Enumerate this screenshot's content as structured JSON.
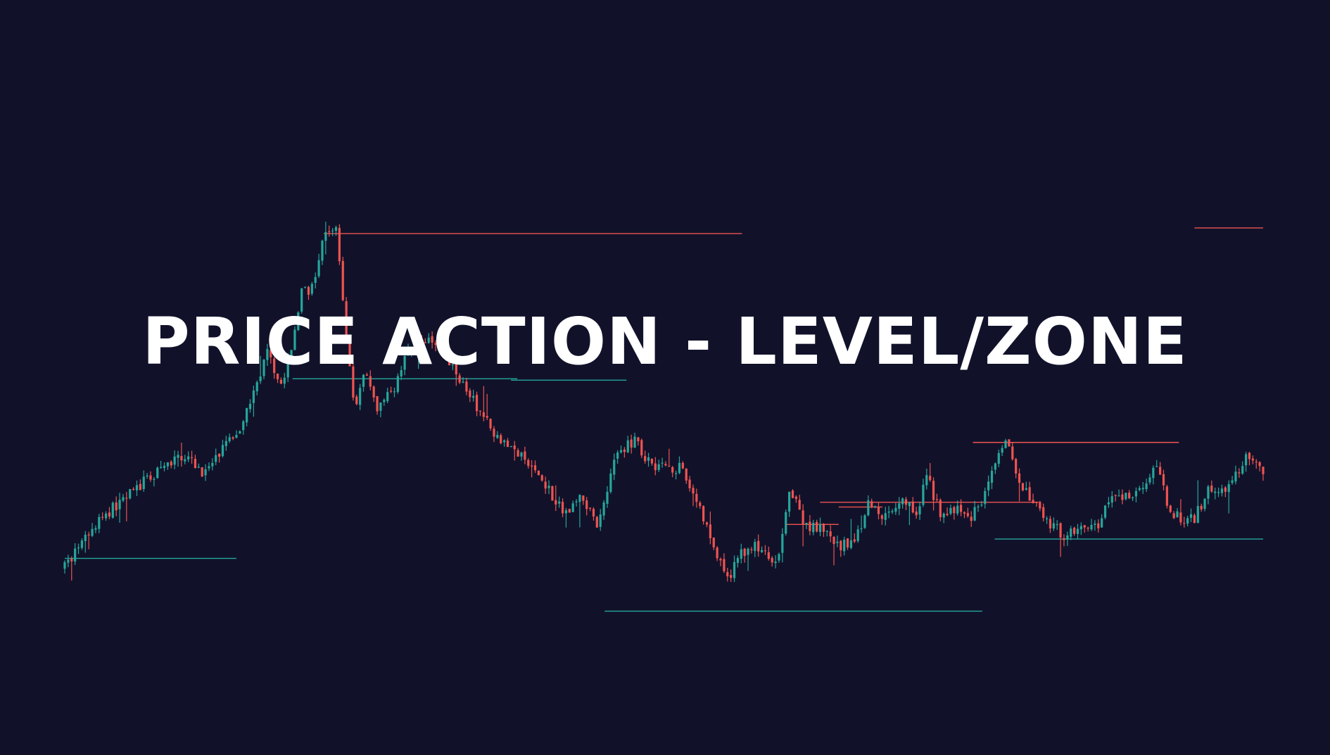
{
  "title": "PRICE ACTION - LEVEL/ZONE",
  "colors": {
    "background": "#11122a",
    "bullish": "#26a69a",
    "bearish": "#ef5350",
    "title": "#ffffff"
  },
  "chart_data": {
    "type": "candlestick",
    "title": "PRICE ACTION - LEVEL/ZONE",
    "xlabel": "",
    "ylabel": "",
    "grid": false,
    "axes_visible": false,
    "ylim": [
      0,
      1000
    ],
    "candle_count": 350,
    "price_path": [
      [
        0,
        110
      ],
      [
        12,
        215
      ],
      [
        25,
        288
      ],
      [
        38,
        350
      ],
      [
        45,
        310
      ],
      [
        55,
        395
      ],
      [
        60,
        470
      ],
      [
        65,
        565
      ],
      [
        70,
        490
      ],
      [
        76,
        695
      ],
      [
        80,
        705
      ],
      [
        83,
        810
      ],
      [
        87,
        832
      ],
      [
        90,
        610
      ],
      [
        93,
        450
      ],
      [
        96,
        520
      ],
      [
        100,
        445
      ],
      [
        105,
        485
      ],
      [
        110,
        565
      ],
      [
        115,
        600
      ],
      [
        120,
        570
      ],
      [
        126,
        515
      ],
      [
        132,
        450
      ],
      [
        136,
        410
      ],
      [
        142,
        370
      ],
      [
        148,
        330
      ],
      [
        154,
        290
      ],
      [
        160,
        220
      ],
      [
        165,
        260
      ],
      [
        171,
        200
      ],
      [
        176,
        340
      ],
      [
        182,
        380
      ],
      [
        188,
        330
      ],
      [
        193,
        325
      ],
      [
        197,
        320
      ],
      [
        202,
        260
      ],
      [
        207,
        170
      ],
      [
        210,
        115
      ],
      [
        212,
        80
      ],
      [
        217,
        145
      ],
      [
        222,
        155
      ],
      [
        228,
        110
      ],
      [
        232,
        280
      ],
      [
        237,
        200
      ],
      [
        242,
        190
      ],
      [
        248,
        152
      ],
      [
        253,
        165
      ],
      [
        258,
        250
      ],
      [
        263,
        215
      ],
      [
        268,
        260
      ],
      [
        273,
        225
      ],
      [
        276,
        305
      ],
      [
        281,
        220
      ],
      [
        286,
        230
      ],
      [
        290,
        212
      ],
      [
        295,
        265
      ],
      [
        300,
        355
      ],
      [
        303,
        380
      ],
      [
        305,
        290
      ],
      [
        310,
        250
      ],
      [
        315,
        205
      ],
      [
        320,
        180
      ],
      [
        325,
        200
      ],
      [
        330,
        190
      ],
      [
        335,
        255
      ],
      [
        340,
        260
      ],
      [
        345,
        285
      ],
      [
        350,
        320
      ],
      [
        353,
        250
      ],
      [
        358,
        202
      ],
      [
        362,
        214
      ],
      [
        367,
        280
      ],
      [
        372,
        265
      ],
      [
        378,
        340
      ],
      [
        384,
        315
      ]
    ],
    "levels": [
      {
        "type": "resistance",
        "price": 818,
        "from_candle": 83,
        "to_candle": 217
      },
      {
        "type": "support",
        "price": 129,
        "from_candle": 0,
        "to_candle": 55
      },
      {
        "type": "support",
        "price": 510,
        "from_candle": 73,
        "to_candle": 145
      },
      {
        "type": "support",
        "price": 507,
        "from_candle": 143,
        "to_candle": 180
      },
      {
        "type": "support",
        "price": 17,
        "from_candle": 173,
        "to_candle": 294
      },
      {
        "type": "resistance",
        "price": 201,
        "from_candle": 231,
        "to_candle": 248
      },
      {
        "type": "resistance",
        "price": 238,
        "from_candle": 248,
        "to_candle": 262
      },
      {
        "type": "resistance",
        "price": 248,
        "from_candle": 242,
        "to_candle": 312
      },
      {
        "type": "resistance",
        "price": 375,
        "from_candle": 291,
        "to_candle": 357
      },
      {
        "type": "support",
        "price": 170,
        "from_candle": 298,
        "to_candle": 384
      },
      {
        "type": "resistance",
        "price": 830,
        "from_candle": 362,
        "to_candle": 384
      }
    ]
  }
}
